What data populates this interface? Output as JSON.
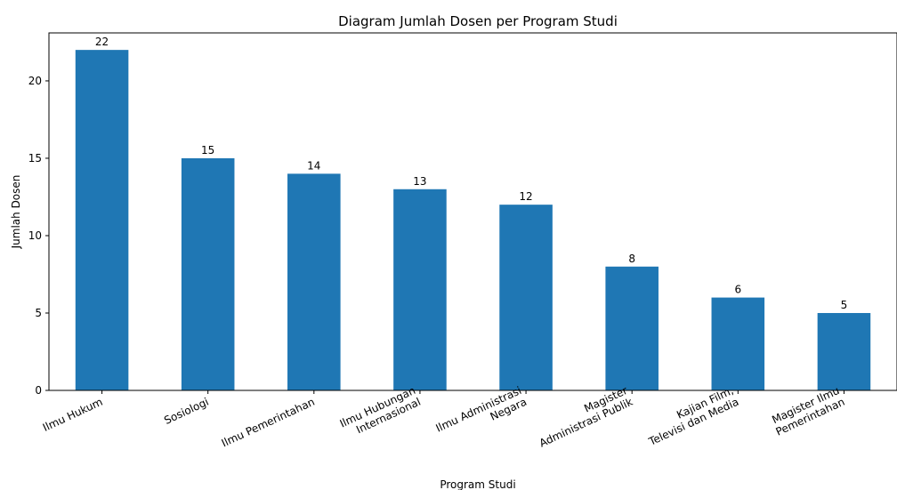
{
  "chart_data": {
    "type": "bar",
    "title": "Diagram Jumlah Dosen per Program Studi",
    "xlabel": "Program Studi",
    "ylabel": "Jumlah Dosen",
    "categories": [
      [
        "Ilmu Hukum"
      ],
      [
        "Sosiologi"
      ],
      [
        "Ilmu Pemerintahan"
      ],
      [
        "Ilmu Hubungan",
        "Internasional"
      ],
      [
        "Ilmu Administrasi",
        "Negara"
      ],
      [
        "Magister",
        "Administrasi Publik"
      ],
      [
        "Kajian Film,",
        "Televisi dan Media"
      ],
      [
        "Magister Ilmu",
        "Pemerintahan"
      ]
    ],
    "values": [
      22,
      15,
      14,
      13,
      12,
      8,
      6,
      5
    ],
    "data_labels": [
      "22",
      "15",
      "14",
      "13",
      "12",
      "8",
      "6",
      "5"
    ],
    "yticks": [
      0,
      5,
      10,
      15,
      20
    ],
    "ylim": [
      0,
      23.1
    ],
    "grid": false,
    "bar_color": "#1f77b4"
  }
}
